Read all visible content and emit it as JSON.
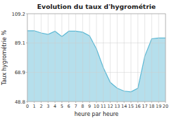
{
  "chart_data": {
    "type": "area",
    "title": "Evolution du taux d'hygrométrie",
    "x_label": "heure par heure",
    "y_label": "Taux hygrométrie %",
    "x": [
      0,
      1,
      2,
      3,
      4,
      5,
      6,
      7,
      8,
      9,
      10,
      11,
      12,
      13,
      14,
      15,
      16,
      17,
      18,
      19,
      20
    ],
    "values": [
      97.5,
      97.5,
      96.0,
      95.0,
      97.2,
      93.5,
      97.2,
      97.2,
      96.5,
      94.0,
      85.0,
      72.0,
      62.0,
      58.0,
      56.0,
      55.5,
      58.0,
      80.0,
      92.0,
      92.5,
      92.5
    ],
    "color": "#5bb8d4",
    "xlim": [
      0,
      20
    ],
    "ylim": [
      48.8,
      109.2
    ],
    "xticks": [
      0,
      1,
      2,
      3,
      4,
      5,
      6,
      7,
      8,
      9,
      10,
      11,
      12,
      13,
      14,
      15,
      16,
      17,
      18,
      19,
      20
    ],
    "yticks": [
      48.8,
      68.9,
      89.1,
      109.2
    ],
    "grid": true
  }
}
